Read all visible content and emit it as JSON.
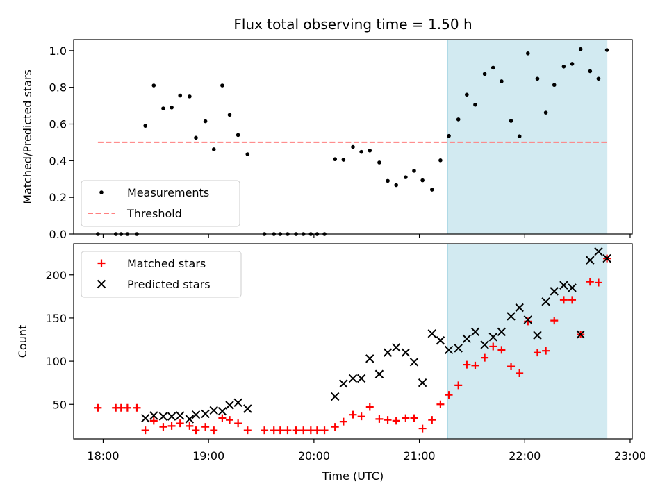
{
  "chart_data": {
    "type": "scatter",
    "title": "Flux total observing time = 1.50 h",
    "xlabel": "Time (UTC)",
    "x_ticks": [
      "18:00",
      "19:00",
      "20:00",
      "21:00",
      "22:00",
      "23:00"
    ],
    "x_range_hours": [
      17.72,
      23.02
    ],
    "observing_window_hours": [
      21.27,
      22.78
    ],
    "window_color": "#add8e6",
    "panels": [
      {
        "ylabel": "Matched/Predicted stars",
        "ylim": [
          0,
          1.06
        ],
        "y_ticks": [
          0.0,
          0.2,
          0.4,
          0.6,
          0.8,
          1.0
        ],
        "y_tick_labels": [
          "0.0",
          "0.2",
          "0.4",
          "0.6",
          "0.8",
          "1.0"
        ],
        "legend_position": "lower-left",
        "threshold": {
          "name": "Threshold",
          "value": 0.5,
          "x_range_hours": [
            17.95,
            22.8
          ],
          "color": "#ff7f7f"
        },
        "series": [
          {
            "name": "Measurements",
            "marker": "dot",
            "color": "#000000",
            "points": [
              [
                17.95,
                0.0
              ],
              [
                18.12,
                0.0
              ],
              [
                18.17,
                0.0
              ],
              [
                18.23,
                0.0
              ],
              [
                18.32,
                0.0
              ],
              [
                18.4,
                0.59
              ],
              [
                18.48,
                0.81
              ],
              [
                18.57,
                0.685
              ],
              [
                18.65,
                0.69
              ],
              [
                18.73,
                0.755
              ],
              [
                18.82,
                0.75
              ],
              [
                18.88,
                0.525
              ],
              [
                18.97,
                0.615
              ],
              [
                19.05,
                0.462
              ],
              [
                19.13,
                0.81
              ],
              [
                19.2,
                0.65
              ],
              [
                19.28,
                0.54
              ],
              [
                19.37,
                0.435
              ],
              [
                19.53,
                0.0
              ],
              [
                19.62,
                0.0
              ],
              [
                19.68,
                0.0
              ],
              [
                19.75,
                0.0
              ],
              [
                19.83,
                0.0
              ],
              [
                19.9,
                0.0
              ],
              [
                19.97,
                0.0
              ],
              [
                20.03,
                0.0
              ],
              [
                20.1,
                0.0
              ],
              [
                20.2,
                0.408
              ],
              [
                20.28,
                0.405
              ],
              [
                20.37,
                0.475
              ],
              [
                20.45,
                0.448
              ],
              [
                20.53,
                0.455
              ],
              [
                20.62,
                0.39
              ],
              [
                20.7,
                0.29
              ],
              [
                20.78,
                0.267
              ],
              [
                20.87,
                0.31
              ],
              [
                20.95,
                0.345
              ],
              [
                21.03,
                0.293
              ],
              [
                21.12,
                0.242
              ],
              [
                21.2,
                0.402
              ],
              [
                21.28,
                0.535
              ],
              [
                21.37,
                0.625
              ],
              [
                21.45,
                0.76
              ],
              [
                21.53,
                0.705
              ],
              [
                21.62,
                0.873
              ],
              [
                21.7,
                0.907
              ],
              [
                21.78,
                0.833
              ],
              [
                21.87,
                0.617
              ],
              [
                21.95,
                0.533
              ],
              [
                22.03,
                0.985
              ],
              [
                22.12,
                0.847
              ],
              [
                22.2,
                0.662
              ],
              [
                22.28,
                0.813
              ],
              [
                22.37,
                0.913
              ],
              [
                22.45,
                0.928
              ],
              [
                22.53,
                1.008
              ],
              [
                22.62,
                0.888
              ],
              [
                22.7,
                0.847
              ],
              [
                22.78,
                1.003
              ]
            ]
          }
        ]
      },
      {
        "ylabel": "Count",
        "ylim": [
          10,
          236
        ],
        "y_ticks": [
          50,
          100,
          150,
          200
        ],
        "y_tick_labels": [
          "50",
          "100",
          "150",
          "200"
        ],
        "legend_position": "upper-left",
        "series": [
          {
            "name": "Matched stars",
            "marker": "plus",
            "color": "#ff0000",
            "points": [
              [
                17.95,
                46
              ],
              [
                18.12,
                46
              ],
              [
                18.17,
                46
              ],
              [
                18.23,
                46
              ],
              [
                18.32,
                46
              ],
              [
                18.4,
                20
              ],
              [
                18.48,
                31
              ],
              [
                18.57,
                24
              ],
              [
                18.65,
                25
              ],
              [
                18.73,
                28
              ],
              [
                18.82,
                25
              ],
              [
                18.88,
                20
              ],
              [
                18.97,
                24
              ],
              [
                19.05,
                20
              ],
              [
                19.13,
                34
              ],
              [
                19.2,
                32
              ],
              [
                19.28,
                28
              ],
              [
                19.37,
                20
              ],
              [
                19.53,
                20
              ],
              [
                19.62,
                20
              ],
              [
                19.68,
                20
              ],
              [
                19.75,
                20
              ],
              [
                19.83,
                20
              ],
              [
                19.9,
                20
              ],
              [
                19.97,
                20
              ],
              [
                20.03,
                20
              ],
              [
                20.1,
                20
              ],
              [
                20.2,
                24
              ],
              [
                20.28,
                30
              ],
              [
                20.37,
                38
              ],
              [
                20.45,
                36
              ],
              [
                20.53,
                47
              ],
              [
                20.62,
                33
              ],
              [
                20.7,
                32
              ],
              [
                20.78,
                31
              ],
              [
                20.87,
                34
              ],
              [
                20.95,
                34
              ],
              [
                21.03,
                22
              ],
              [
                21.12,
                32
              ],
              [
                21.2,
                50
              ],
              [
                21.28,
                61
              ],
              [
                21.37,
                72
              ],
              [
                21.45,
                96
              ],
              [
                21.53,
                95
              ],
              [
                21.62,
                104
              ],
              [
                21.7,
                117
              ],
              [
                21.78,
                113
              ],
              [
                21.87,
                94
              ],
              [
                21.95,
                86
              ],
              [
                22.03,
                146
              ],
              [
                22.12,
                110
              ],
              [
                22.2,
                112
              ],
              [
                22.28,
                147
              ],
              [
                22.37,
                171
              ],
              [
                22.45,
                171
              ],
              [
                22.53,
                131
              ],
              [
                22.62,
                192
              ],
              [
                22.7,
                191
              ],
              [
                22.78,
                219
              ]
            ]
          },
          {
            "name": "Predicted stars",
            "marker": "x",
            "color": "#000000",
            "points": [
              [
                18.4,
                34
              ],
              [
                18.48,
                37
              ],
              [
                18.57,
                36
              ],
              [
                18.65,
                36
              ],
              [
                18.73,
                37
              ],
              [
                18.82,
                33
              ],
              [
                18.88,
                38
              ],
              [
                18.97,
                39
              ],
              [
                19.05,
                43
              ],
              [
                19.13,
                42
              ],
              [
                19.2,
                49
              ],
              [
                19.28,
                52
              ],
              [
                19.37,
                45
              ],
              [
                20.2,
                59
              ],
              [
                20.28,
                74
              ],
              [
                20.37,
                80
              ],
              [
                20.45,
                80
              ],
              [
                20.53,
                103
              ],
              [
                20.62,
                85
              ],
              [
                20.7,
                110
              ],
              [
                20.78,
                116
              ],
              [
                20.87,
                110
              ],
              [
                20.95,
                99
              ],
              [
                21.03,
                75
              ],
              [
                21.12,
                132
              ],
              [
                21.2,
                124
              ],
              [
                21.28,
                113
              ],
              [
                21.37,
                115
              ],
              [
                21.45,
                126
              ],
              [
                21.53,
                134
              ],
              [
                21.62,
                119
              ],
              [
                21.7,
                128
              ],
              [
                21.78,
                134
              ],
              [
                21.87,
                152
              ],
              [
                21.95,
                162
              ],
              [
                22.03,
                148
              ],
              [
                22.12,
                130
              ],
              [
                22.2,
                169
              ],
              [
                22.28,
                181
              ],
              [
                22.37,
                188
              ],
              [
                22.45,
                185
              ],
              [
                22.53,
                131
              ],
              [
                22.62,
                217
              ],
              [
                22.7,
                227
              ],
              [
                22.78,
                219
              ]
            ]
          }
        ]
      }
    ]
  }
}
